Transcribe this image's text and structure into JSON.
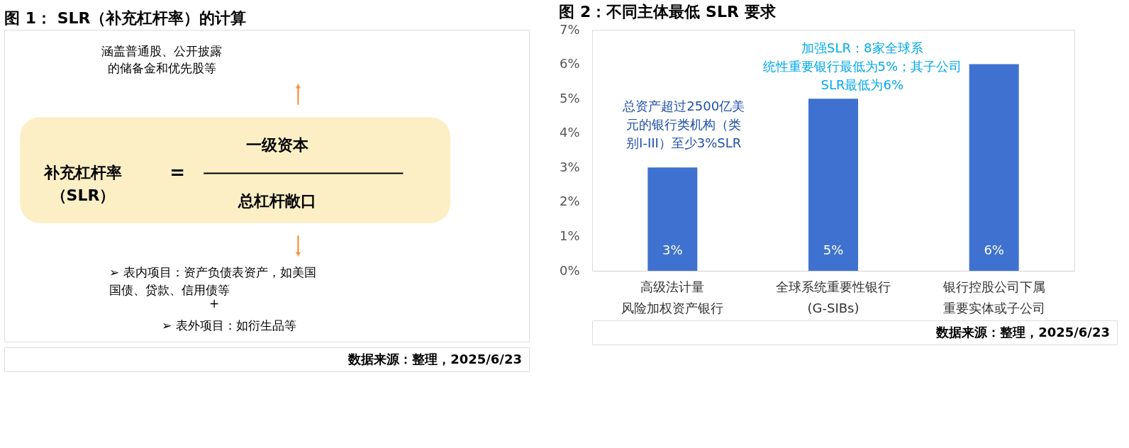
{
  "chart_data": [
    {
      "type": "other",
      "title": "图 1： SLR（补充杠杆率）的计算",
      "annotations": [
        "涵盖普通股、公开披露的储备金和优先股等",
        "补充杠杆率（SLR）",
        "=",
        "一级资本",
        "总杠杆敞口",
        "➢  表内项目：资产负债表资产，如美国国债、贷款、信用债等",
        "+",
        "➢  表外项目：如衍生品等",
        "数据来源：整理，2025/6/23"
      ]
    },
    {
      "type": "bar",
      "title": "图 2：不同主体最低 SLR 要求",
      "categories": [
        "高级法计量风险加权资产银行",
        "全球系统重要性银行(G-SIBs)",
        "银行控股公司下属重要实体或子公司"
      ],
      "values": [
        3,
        5,
        6
      ],
      "color": "#3f72d0",
      "value_labels": [
        "3%",
        "5%",
        "6%"
      ],
      "ylim": [
        0,
        7
      ],
      "yticks": [
        {
          "value": 0,
          "label": "0%"
        },
        {
          "value": 1,
          "label": "1%"
        },
        {
          "value": 2,
          "label": "2%"
        },
        {
          "value": 3,
          "label": "3%"
        },
        {
          "value": 4,
          "label": "4%"
        },
        {
          "value": 5,
          "label": "5%"
        },
        {
          "value": 6,
          "label": "6%"
        },
        {
          "value": 7,
          "label": "7%"
        }
      ],
      "annotations": [
        "总资产超过2500亿美元的银行类机构（类别I-III）至少3%SLR",
        "加强SLR：8家全球系统性重要银行最低为5%；其子公司SLR最低为6%",
        "数据来源：整理，2025/6/23"
      ]
    }
  ]
}
